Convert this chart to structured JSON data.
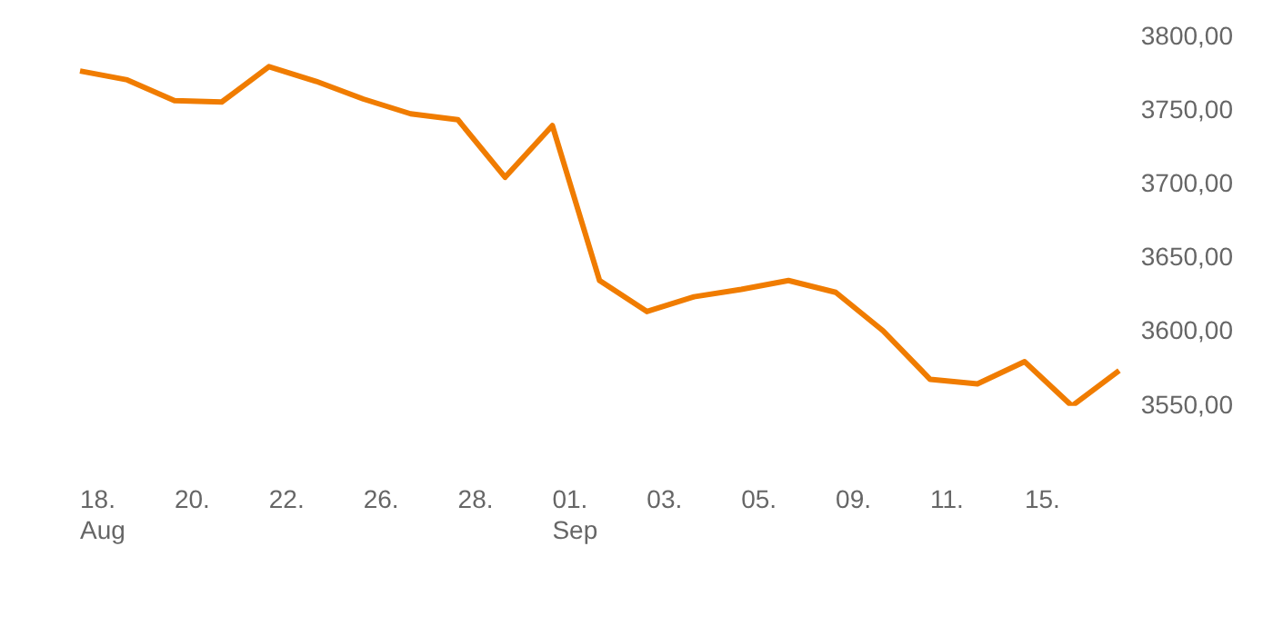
{
  "chart_data": {
    "type": "line",
    "categories": [
      "18.\nAug",
      null,
      "20.",
      null,
      "22.",
      null,
      "26.",
      null,
      "28.",
      null,
      "01.\nSep",
      null,
      "03.",
      null,
      "05.",
      null,
      "09.",
      null,
      "11.",
      null,
      "15.",
      null,
      null
    ],
    "series": [
      {
        "color": "#f07c00",
        "values": [
          3777,
          3771,
          3757,
          3756,
          3780,
          3770,
          3758,
          3748,
          3744,
          3705,
          3740,
          3635,
          3614,
          3624,
          3629,
          3635,
          3627,
          3601,
          3568,
          3565,
          3580,
          3550,
          3574
        ]
      }
    ],
    "ylim": [
      3550,
      3800
    ],
    "yticks": [
      {
        "value": 3550,
        "label": "3550,00"
      },
      {
        "value": 3600,
        "label": "3600,00"
      },
      {
        "value": 3650,
        "label": "3650,00"
      },
      {
        "value": 3700,
        "label": "3700,00"
      },
      {
        "value": 3750,
        "label": "3750,00"
      },
      {
        "value": 3800,
        "label": "3800,00"
      }
    ],
    "grid": false,
    "legend": false,
    "marker": "none",
    "line_style": "solid"
  }
}
